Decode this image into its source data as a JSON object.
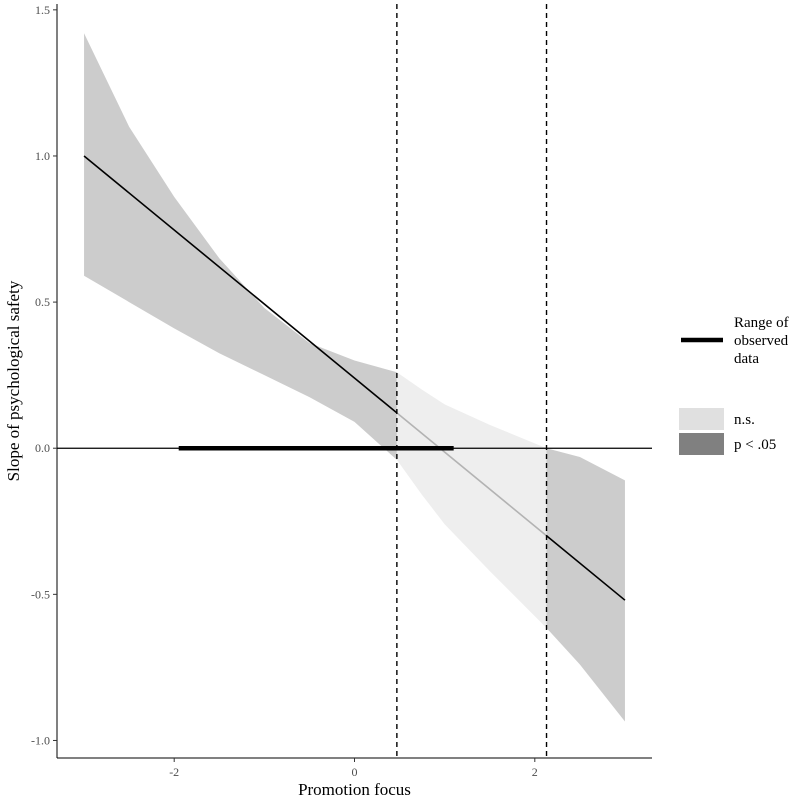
{
  "chart_data": {
    "type": "line",
    "title": "",
    "xlabel": "Promotion focus",
    "ylabel": "Slope of psychological safety",
    "xlim": [
      -3.3,
      3.3
    ],
    "ylim": [
      -1.06,
      1.52
    ],
    "xticks": [
      -2,
      0,
      2
    ],
    "yticks": [
      -1.0,
      -0.5,
      0.0,
      0.5,
      1.0,
      1.5
    ],
    "xtick_labels": [
      "-2",
      "0",
      "2"
    ],
    "ytick_labels": [
      "-1.0",
      "-0.5",
      "0.0",
      "0.5",
      "1.0",
      "1.5"
    ],
    "slope_line": {
      "x": [
        -3.0,
        3.0
      ],
      "y": [
        1.0,
        -0.52
      ]
    },
    "confidence_band": {
      "x": [
        -3.0,
        -2.5,
        -2.0,
        -1.5,
        -1.0,
        -0.5,
        0.0,
        0.47,
        0.75,
        1.0,
        1.5,
        2.13,
        2.5,
        3.0
      ],
      "lower": [
        0.59,
        0.5,
        0.41,
        0.325,
        0.25,
        0.175,
        0.09,
        -0.04,
        -0.16,
        -0.26,
        -0.42,
        -0.615,
        -0.74,
        -0.935
      ],
      "upper": [
        1.42,
        1.1,
        0.86,
        0.65,
        0.48,
        0.36,
        0.3,
        0.26,
        0.2,
        0.15,
        0.08,
        0.0,
        -0.03,
        -0.11
      ]
    },
    "significance_regions": [
      {
        "from": -3.0,
        "to": 0.47,
        "status": "p < .05"
      },
      {
        "from": 0.47,
        "to": 2.13,
        "status": "n.s."
      },
      {
        "from": 2.13,
        "to": 3.0,
        "status": "p < .05"
      }
    ],
    "johnson_neyman_points": [
      0.47,
      2.13
    ],
    "zero_line": 0.0,
    "observed_range": [
      -1.95,
      1.1
    ],
    "legend": {
      "range_label": [
        "Range of",
        "observed",
        "data"
      ],
      "ns_label": "n.s.",
      "sig_label": "p < .05"
    },
    "colors": {
      "sig_band": "#cccccc",
      "ns_band": "#eeeeee",
      "sig_line": "#000000",
      "ns_line": "#b3b3b3",
      "legend_ns": "#e0e0e0",
      "legend_sig": "#808080"
    }
  }
}
